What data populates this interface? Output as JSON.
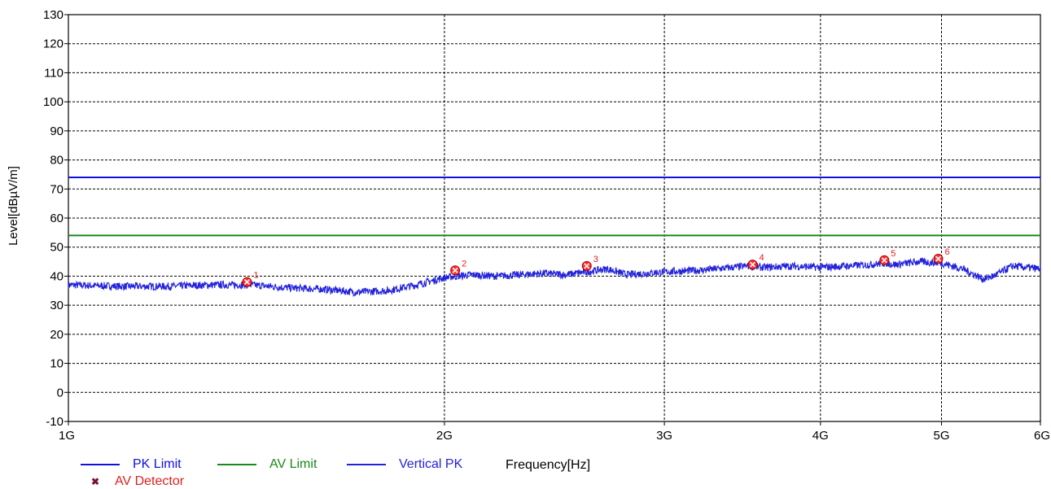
{
  "chart_data": {
    "type": "line",
    "xlabel": "Frequency[Hz]",
    "ylabel": "Level[dBµV/m]",
    "x_scale": "log",
    "xlim": [
      1000000000,
      6000000000
    ],
    "ylim": [
      -10,
      130
    ],
    "grid": true,
    "legend_placement": "bottom-left",
    "x_ticks": [
      {
        "label": "1G",
        "value": 1000000000
      },
      {
        "label": "2G",
        "value": 2000000000
      },
      {
        "label": "3G",
        "value": 3000000000
      },
      {
        "label": "4G",
        "value": 4000000000
      },
      {
        "label": "5G",
        "value": 5000000000
      },
      {
        "label": "6G",
        "value": 6000000000
      }
    ],
    "y_ticks": [
      130,
      120,
      110,
      100,
      90,
      80,
      70,
      60,
      50,
      40,
      30,
      20,
      10,
      0,
      -10
    ],
    "series": [
      {
        "name": "PK Limit",
        "color": "#1010e0",
        "x": [
          1000000000,
          6000000000
        ],
        "y": [
          74,
          74
        ]
      },
      {
        "name": "AV Limit",
        "color": "#1a8a1a",
        "x": [
          1000000000,
          6000000000
        ],
        "y": [
          54,
          54
        ]
      },
      {
        "name": "Vertical PK",
        "color": "#2222dd",
        "x": [
          1000000000,
          1100000000,
          1200000000,
          1300000000,
          1400000000,
          1500000000,
          1600000000,
          1700000000,
          1800000000,
          1900000000,
          2000000000,
          2100000000,
          2200000000,
          2300000000,
          2400000000,
          2500000000,
          2600000000,
          2700000000,
          2800000000,
          2900000000,
          3000000000,
          3200000000,
          3400000000,
          3500000000,
          3600000000,
          3800000000,
          4000000000,
          4200000000,
          4400000000,
          4500000000,
          4600000000,
          4800000000,
          5000000000,
          5200000000,
          5400000000,
          5500000000,
          5700000000,
          6000000000
        ],
        "y": [
          37,
          36.5,
          36.5,
          37,
          37,
          36,
          35.5,
          34.5,
          35,
          37,
          39.5,
          40.5,
          40,
          40.5,
          41,
          40.5,
          41.5,
          42.5,
          40.5,
          41,
          41.5,
          42,
          43,
          43.5,
          43,
          43.5,
          43,
          43.5,
          44,
          44.5,
          44,
          45,
          44.5,
          42.5,
          39,
          40,
          43.5,
          42.5
        ]
      }
    ],
    "markers": {
      "name": "AV Detector",
      "color": "#cc0000",
      "points": [
        {
          "label": "1",
          "x": 1390000000,
          "y": 38
        },
        {
          "label": "2",
          "x": 2040000000,
          "y": 42
        },
        {
          "label": "3",
          "x": 2600000000,
          "y": 43.5
        },
        {
          "label": "4",
          "x": 3530000000,
          "y": 44
        },
        {
          "label": "5",
          "x": 4500000000,
          "y": 45.5
        },
        {
          "label": "6",
          "x": 4970000000,
          "y": 46
        }
      ]
    }
  }
}
